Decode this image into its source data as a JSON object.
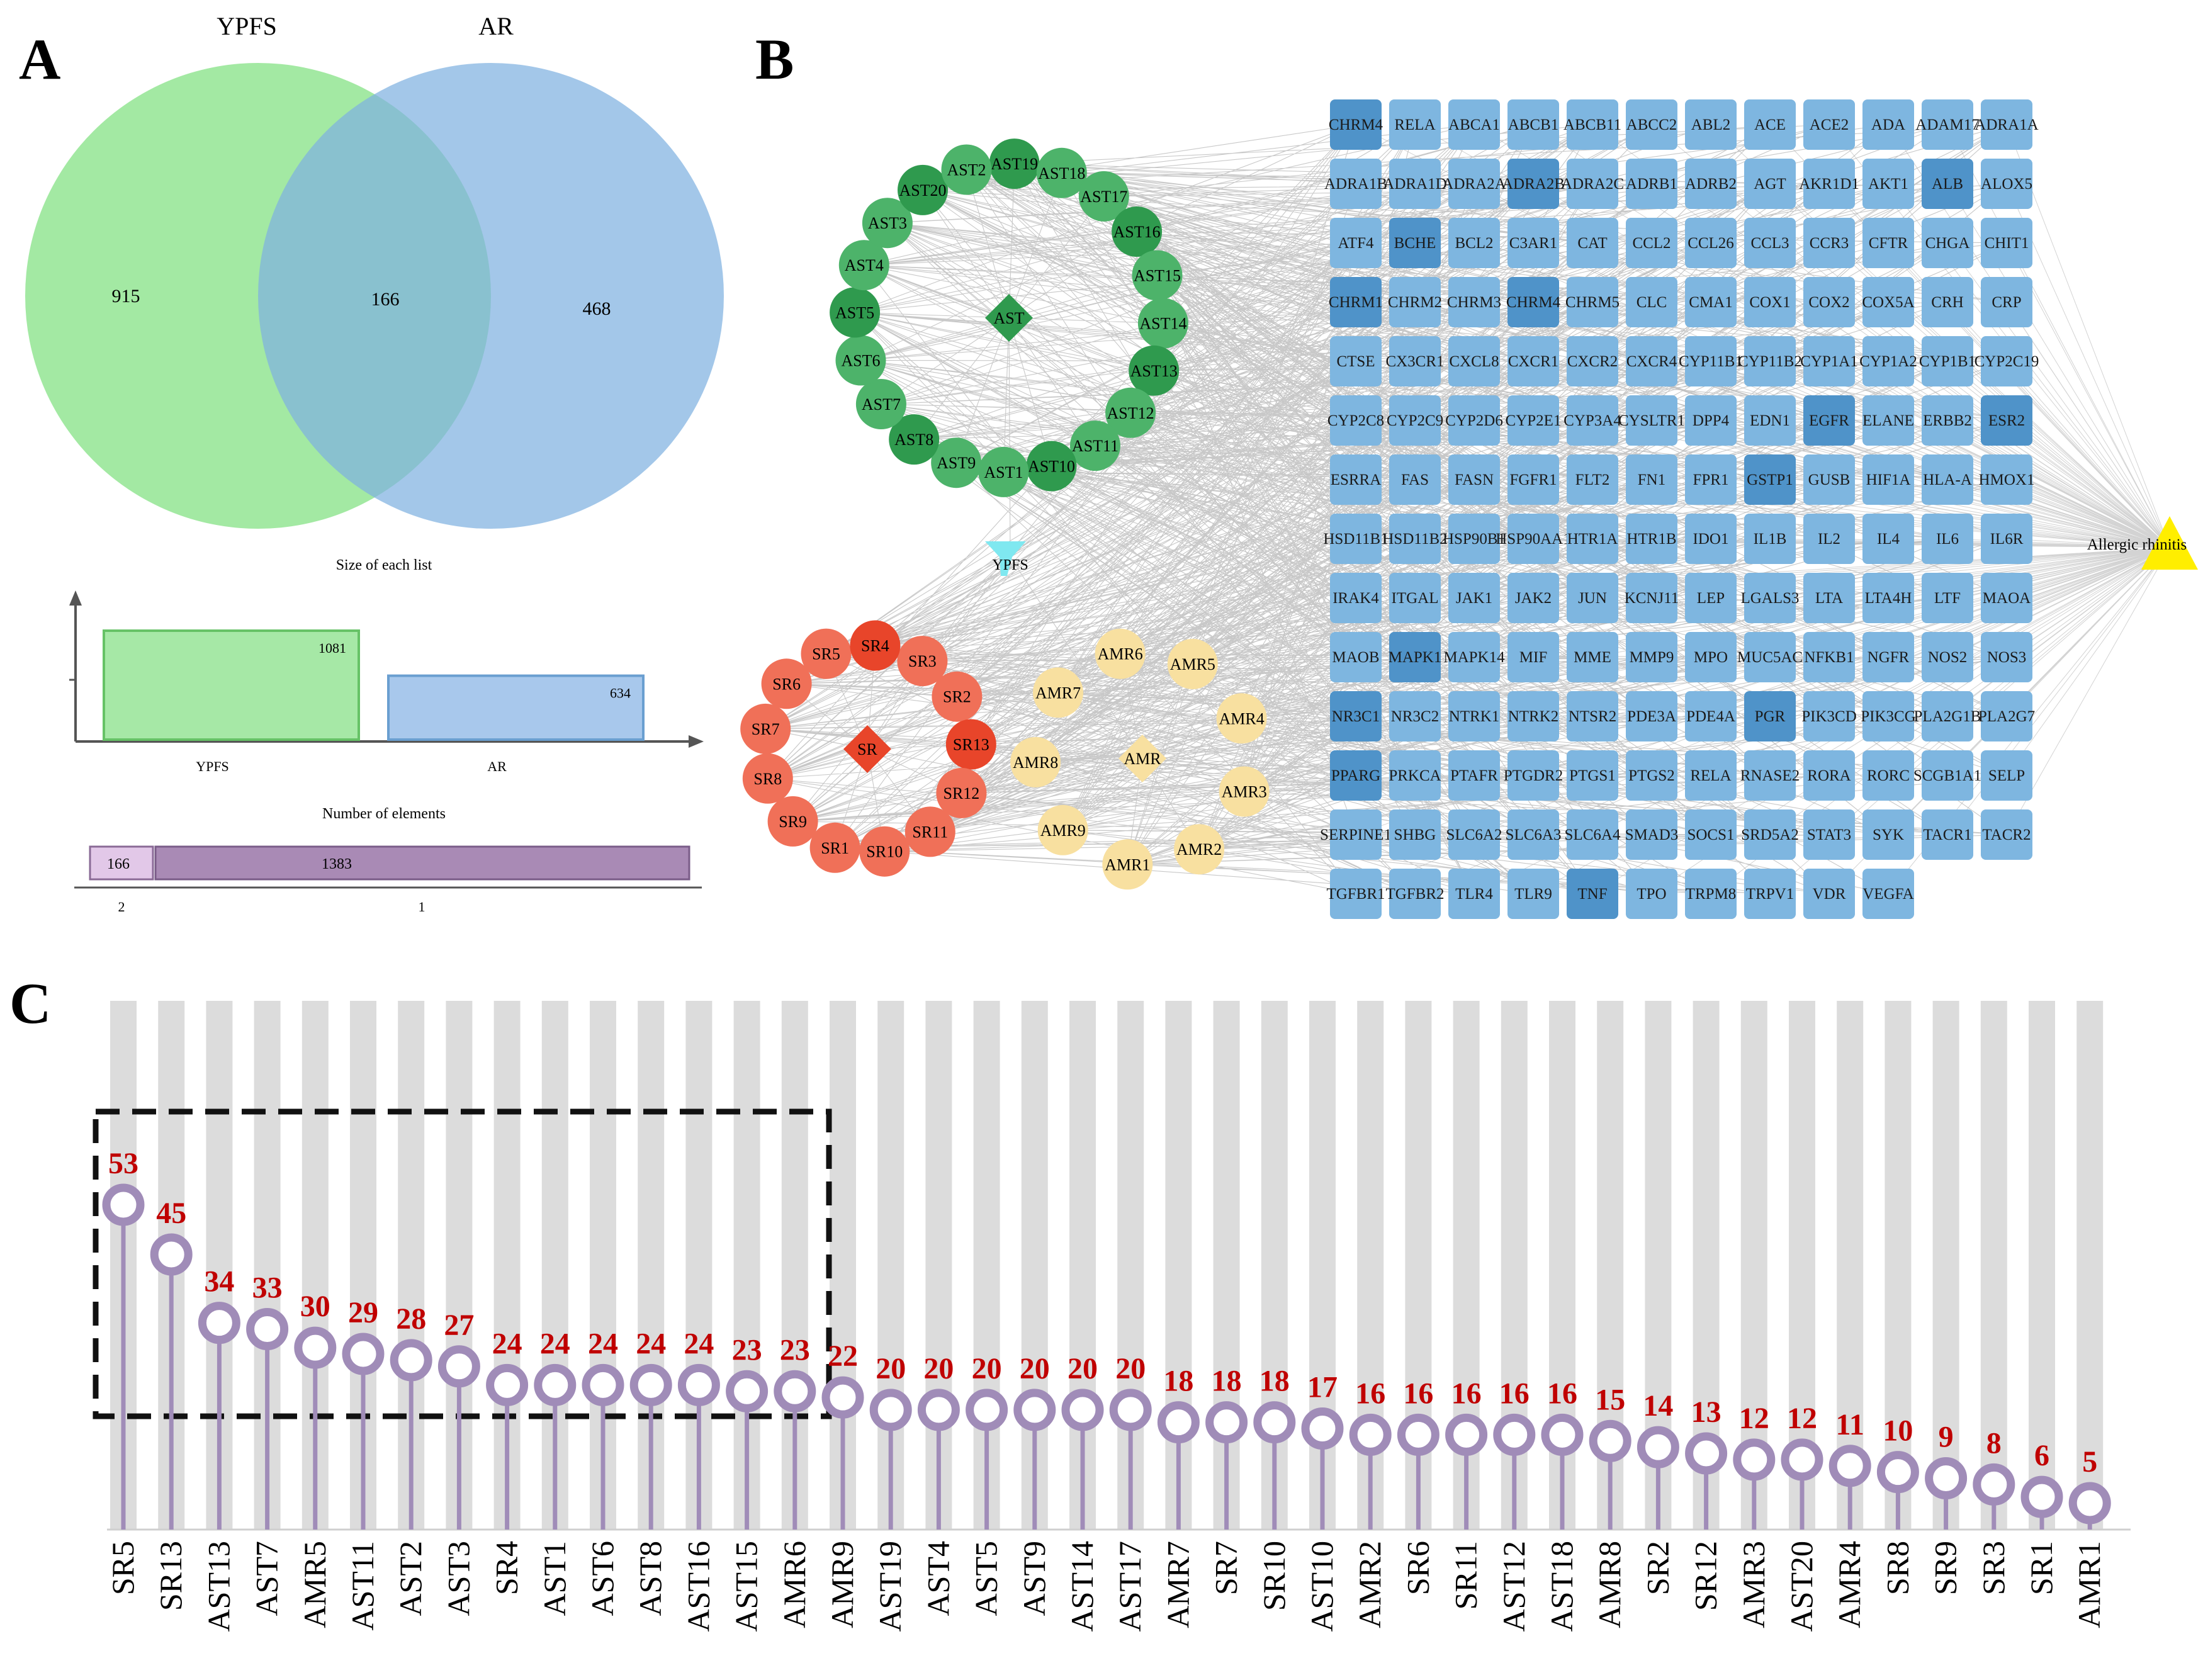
{
  "panels": {
    "a": "A",
    "b": "B",
    "c": "C"
  },
  "venn": {
    "set1_label": "YPFS",
    "set2_label": "AR",
    "only1": "915",
    "overlap": "166",
    "only2": "468",
    "colors": {
      "set1": "#7fe07f",
      "set2": "#7fb2e0",
      "overlap": "#6bb0a4"
    }
  },
  "upset": {
    "bar_title": "Size of each list",
    "bars": [
      {
        "label": "YPFS",
        "value": 1081
      },
      {
        "label": "AR",
        "value": 634
      }
    ],
    "elements_title": "Number of elements",
    "segments": [
      {
        "count": "166",
        "degree": "2"
      },
      {
        "count": "1383",
        "degree": "1"
      }
    ]
  },
  "network": {
    "center_label": "YPFS",
    "disease_label": "Allergic rhinitis",
    "hubs": {
      "AST": "AST",
      "SR": "SR",
      "AMR": "AMR"
    },
    "ast_nodes": [
      "AST19",
      "AST18",
      "AST17",
      "AST16",
      "AST15",
      "AST14",
      "AST13",
      "AST12",
      "AST11",
      "AST10",
      "AST1",
      "AST9",
      "AST8",
      "AST7",
      "AST6",
      "AST5",
      "AST4",
      "AST3",
      "AST20",
      "AST2"
    ],
    "sr_nodes": [
      "SR3",
      "SR2",
      "SR13",
      "SR12",
      "SR11",
      "SR10",
      "SR1",
      "SR9",
      "SR8",
      "SR7",
      "SR6",
      "SR5",
      "SR4"
    ],
    "amr_nodes": [
      "AMR5",
      "AMR4",
      "AMR3",
      "AMR2",
      "AMR1",
      "AMR9",
      "AMR8",
      "AMR7",
      "AMR6"
    ],
    "targets": [
      "CHRM4",
      "RELA",
      "ABCA1",
      "ABCB1",
      "ABCB11",
      "ABCC2",
      "ABL2",
      "ACE",
      "ACE2",
      "ADA",
      "ADAM17",
      "ADRA1A",
      "ADRA1B",
      "ADRA1D",
      "ADRA2A",
      "ADRA2B",
      "ADRA2C",
      "ADRB1",
      "ADRB2",
      "AGT",
      "AKR1D1",
      "AKT1",
      "ALB",
      "ALOX5",
      "ATF4",
      "BCHE",
      "BCL2",
      "C3AR1",
      "CAT",
      "CCL2",
      "CCL26",
      "CCL3",
      "CCR3",
      "CFTR",
      "CHGA",
      "CHIT1",
      "CHRM1",
      "CHRM2",
      "CHRM3",
      "CHRM4",
      "CHRM5",
      "CLC",
      "CMA1",
      "COX1",
      "COX2",
      "COX5A",
      "CRH",
      "CRP",
      "CTSE",
      "CX3CR1",
      "CXCL8",
      "CXCR1",
      "CXCR2",
      "CXCR4",
      "CYP11B1",
      "CYP11B2",
      "CYP1A1",
      "CYP1A2",
      "CYP1B1",
      "CYP2C19",
      "CYP2C8",
      "CYP2C9",
      "CYP2D6",
      "CYP2E1",
      "CYP3A4",
      "CYSLTR1",
      "DPP4",
      "EDN1",
      "EGFR",
      "ELANE",
      "ERBB2",
      "ESR2",
      "ESRRA",
      "FAS",
      "FASN",
      "FGFR1",
      "FLT2",
      "FN1",
      "FPR1",
      "GSTP1",
      "GUSB",
      "HIF1A",
      "HLA-A",
      "HMOX1",
      "HSD11B1",
      "HSD11B2",
      "HSP90B1",
      "HSP90AA1",
      "HTR1A",
      "HTR1B",
      "IDO1",
      "IL1B",
      "IL2",
      "IL4",
      "IL6",
      "IL6R",
      "IRAK4",
      "ITGAL",
      "JAK1",
      "JAK2",
      "JUN",
      "KCNJ11",
      "LEP",
      "LGALS3",
      "LTA",
      "LTA4H",
      "LTF",
      "MAOA",
      "MAOB",
      "MAPK1",
      "MAPK14",
      "MIF",
      "MME",
      "MMP9",
      "MPO",
      "MUC5AC",
      "NFKB1",
      "NGFR",
      "NOS2",
      "NOS3",
      "NR3C1",
      "NR3C2",
      "NTRK1",
      "NTRK2",
      "NTSR2",
      "PDE3A",
      "PDE4A",
      "PGR",
      "PIK3CD",
      "PIK3CG",
      "PLA2G1B",
      "PLA2G7",
      "PPARG",
      "PRKCA",
      "PTAFR",
      "PTGDR2",
      "PTGS1",
      "PTGS2",
      "RELA",
      "RNASE2",
      "RORA",
      "RORC",
      "SCGB1A1",
      "SELP",
      "SERPINE1",
      "SHBG",
      "SLC6A2",
      "SLC6A3",
      "SLC6A4",
      "SMAD3",
      "SOCS1",
      "SRD5A2",
      "STAT3",
      "SYK",
      "TACR1",
      "TACR2",
      "TGFBR1",
      "TGFBR2",
      "TLR4",
      "TLR9",
      "TNF",
      "TPO",
      "TRPM8",
      "TRPV1",
      "VDR",
      "VEGFA"
    ],
    "dark_targets": [
      "ABCB1",
      "ADAM17",
      "ALB",
      "BCHE",
      "EGFR",
      "ESR2",
      "GSTP1",
      "PGR",
      "ADRA2B",
      "HSP90AA1",
      "CHRM1",
      "MAOB",
      "MAPK1",
      "PPARG",
      "TNF",
      "TGFBR2",
      "NR3C1",
      "CHRM4"
    ]
  },
  "chart_data": {
    "type": "lollipop",
    "title": "",
    "xlabel": "",
    "ylabel": "",
    "ylim": [
      0,
      60
    ],
    "categories": [
      "SR5",
      "SR13",
      "AST13",
      "AST7",
      "AMR5",
      "AST11",
      "AST2",
      "AST3",
      "SR4",
      "AST1",
      "AST6",
      "AST8",
      "AST16",
      "AST15",
      "AMR6",
      "AMR9",
      "AST19",
      "AST4",
      "AST5",
      "AST9",
      "AST14",
      "AST17",
      "AMR7",
      "SR7",
      "SR10",
      "AST10",
      "AMR2",
      "SR6",
      "SR11",
      "AST12",
      "AST18",
      "AMR8",
      "SR2",
      "SR12",
      "AMR3",
      "AST20",
      "AMR4",
      "SR8",
      "SR9",
      "SR3",
      "SR1",
      "AMR1"
    ],
    "values": [
      53,
      45,
      34,
      33,
      30,
      29,
      28,
      27,
      24,
      24,
      24,
      24,
      24,
      23,
      23,
      22,
      20,
      20,
      20,
      20,
      20,
      20,
      18,
      18,
      18,
      17,
      16,
      16,
      16,
      16,
      16,
      15,
      14,
      13,
      12,
      12,
      11,
      10,
      9,
      8,
      6,
      5
    ],
    "highlight_box": "first 15 categories",
    "colors": {
      "stem": "#a08cb8",
      "marker": "#a08cb8",
      "label": "#c00000",
      "column": "#dcdcdc"
    }
  }
}
